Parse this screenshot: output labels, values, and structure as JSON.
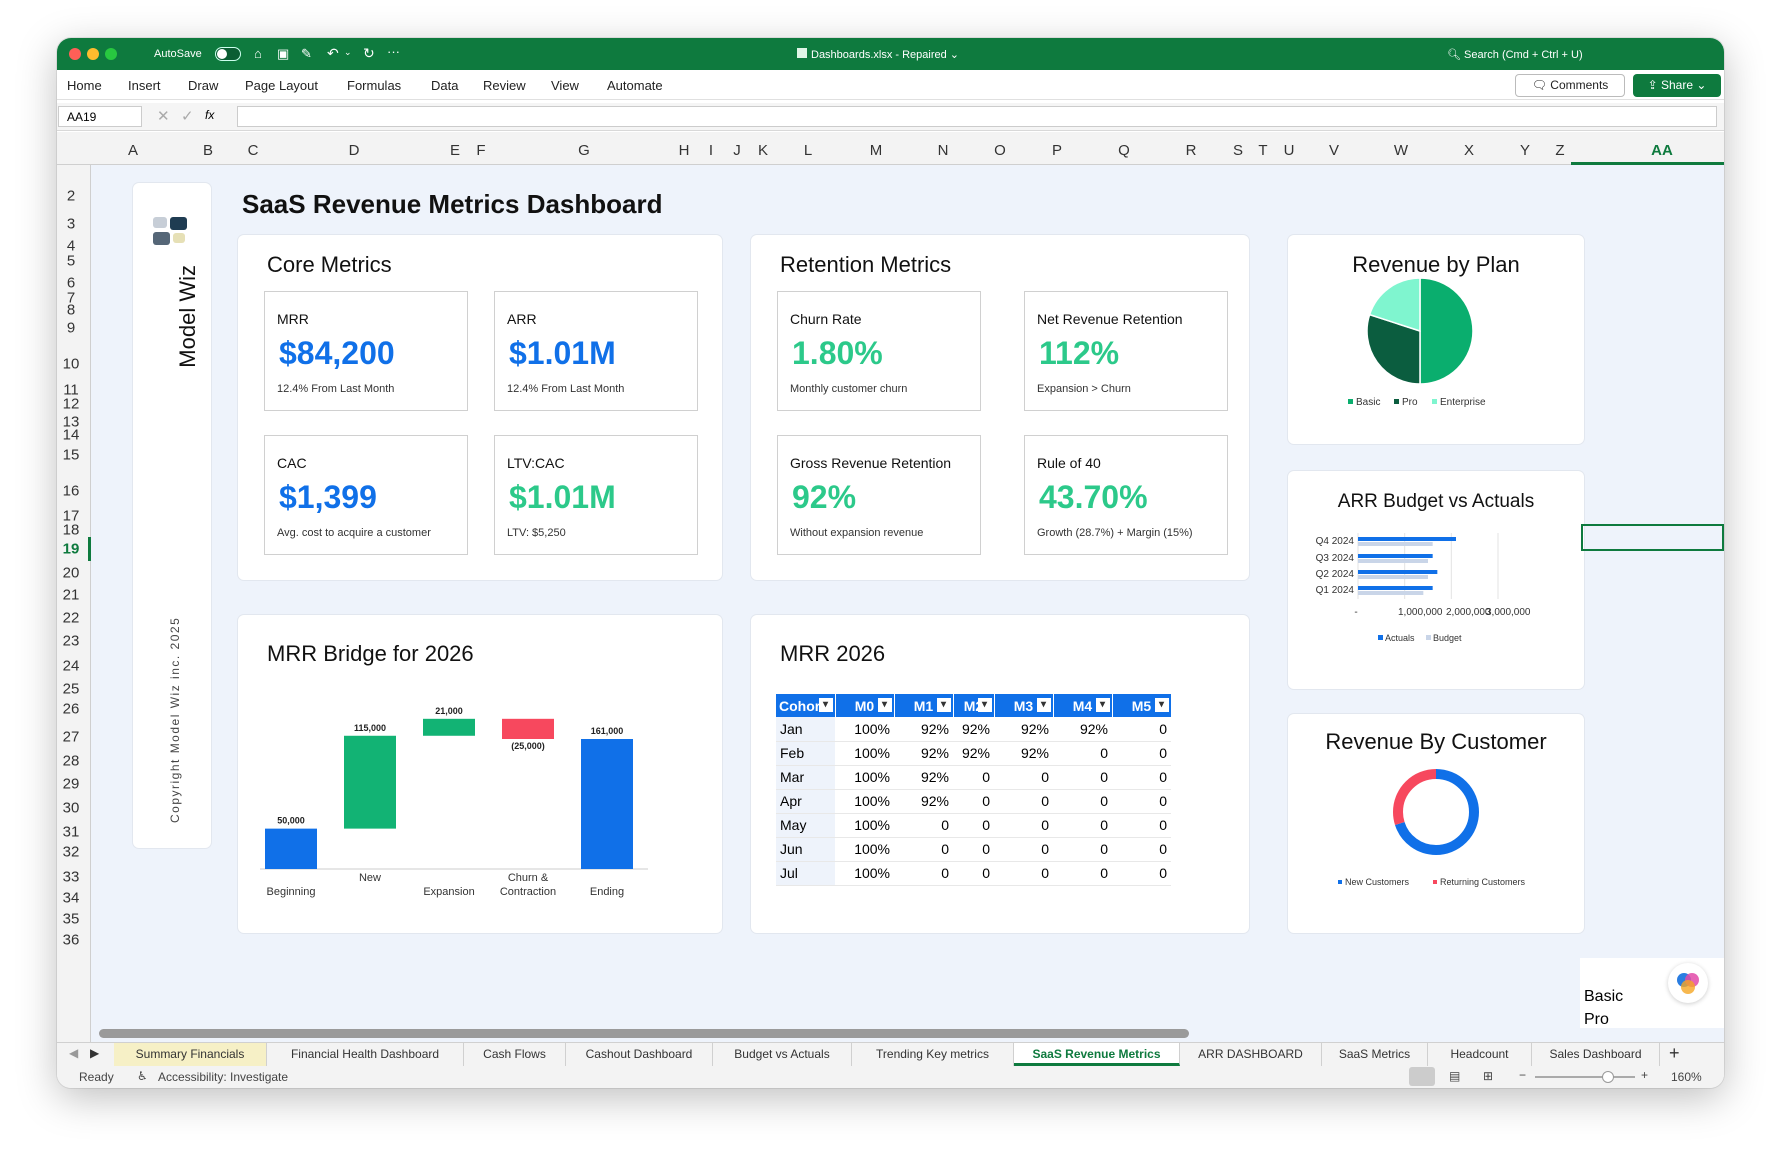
{
  "window": {
    "autosave": "AutoSave",
    "filename": "Dashboards.xlsx",
    "status": "Repaired",
    "search": "Search (Cmd + Ctrl + U)"
  },
  "menu": [
    "Home",
    "Insert",
    "Draw",
    "Page Layout",
    "Formulas",
    "Data",
    "Review",
    "View",
    "Automate"
  ],
  "comments": "Comments",
  "share": "Share",
  "formula": {
    "cell": "AA19",
    "fx": "fx"
  },
  "columns": [
    "A",
    "B",
    "C",
    "D",
    "E",
    "F",
    "G",
    "H",
    "I",
    "J",
    "K",
    "L",
    "M",
    "N",
    "O",
    "P",
    "Q",
    "R",
    "S",
    "T",
    "U",
    "V",
    "W",
    "X",
    "Y",
    "Z",
    "AA"
  ],
  "rows": [
    "2",
    "3",
    "4",
    "5",
    "6",
    "7",
    "8",
    "9",
    "10",
    "11",
    "12",
    "13",
    "14",
    "15",
    "16",
    "17",
    "18",
    "19",
    "20",
    "21",
    "22",
    "23",
    "24",
    "25",
    "26",
    "27",
    "28",
    "29",
    "30",
    "31",
    "32",
    "33",
    "34",
    "35",
    "36"
  ],
  "brand": {
    "name": "Model Wiz",
    "copyright": "Copyright Model Wiz inc. 2025"
  },
  "dashboard_title": "SaaS Revenue Metrics Dashboard",
  "core": {
    "title": "Core Metrics",
    "kpis": [
      {
        "label": "MRR",
        "value": "$84,200",
        "sub": "12.4% From Last Month",
        "color": "#1070e8"
      },
      {
        "label": "ARR",
        "value": "$1.01M",
        "sub": "12.4% From Last Month",
        "color": "#1070e8"
      },
      {
        "label": "CAC",
        "value": "$1,399",
        "sub": "Avg. cost to acquire a customer",
        "color": "#1070e8"
      },
      {
        "label": "LTV:CAC",
        "value": "$1.01M",
        "sub": "LTV: $5,250",
        "color": "#2cc98a"
      }
    ]
  },
  "retention": {
    "title": "Retention Metrics",
    "kpis": [
      {
        "label": "Churn Rate",
        "value": "1.80%",
        "sub": "Monthly customer churn",
        "color": "#2cc98a"
      },
      {
        "label": "Net Revenue Retention",
        "value": "112%",
        "sub": "Expansion > Churn",
        "color": "#2cc98a"
      },
      {
        "label": "Gross Revenue Retention",
        "value": "92%",
        "sub": "Without expansion revenue",
        "color": "#2cc98a"
      },
      {
        "label": "Rule of 40",
        "value": "43.70%",
        "sub": "Growth (28.7%) + Margin (15%)",
        "color": "#2cc98a"
      }
    ]
  },
  "chart_data": [
    {
      "type": "bar",
      "title": "MRR Bridge for 2026",
      "categories": [
        "Beginning",
        "New",
        "Expansion",
        "Churn & Contraction",
        "Ending"
      ],
      "values": [
        50000,
        115000,
        21000,
        -25000,
        161000
      ],
      "value_labels": [
        "50,000",
        "115,000",
        "21,000",
        "(25,000)",
        "161,000"
      ],
      "colors": [
        "#1070e8",
        "#12b374",
        "#12b374",
        "#f7485e",
        "#1070e8"
      ]
    },
    {
      "type": "pie",
      "title": "Revenue by Plan",
      "categories": [
        "Basic",
        "Pro",
        "Enterprise"
      ],
      "values": [
        50,
        30,
        20
      ],
      "colors": [
        "#0aae6e",
        "#0b5d3f",
        "#7ff5cf"
      ]
    },
    {
      "type": "bar",
      "title": "ARR Budget vs Actuals",
      "categories": [
        "Q4 2024",
        "Q3 2024",
        "Q2 2024",
        "Q1 2024"
      ],
      "series": [
        {
          "name": "Actuals",
          "values": [
            2100000,
            1600000,
            1700000,
            1600000
          ],
          "color": "#1070e8"
        },
        {
          "name": "Budget",
          "values": [
            1600000,
            1500000,
            1500000,
            1400000
          ],
          "color": "#c9d5e8"
        }
      ],
      "x_ticks": [
        "-",
        "1,000,000",
        "2,000,000",
        "3,000,000"
      ],
      "xlim": [
        0,
        3000000
      ]
    },
    {
      "type": "pie",
      "title": "Revenue By Customer",
      "categories": [
        "New Customers",
        "Returning Customers"
      ],
      "values": [
        70,
        30
      ],
      "colors": [
        "#1070e8",
        "#f7485e"
      ]
    }
  ],
  "cohort": {
    "title": "MRR 2026",
    "headers": [
      "Cohort",
      "M0",
      "M1",
      "M2",
      "M3",
      "M4",
      "M5"
    ],
    "rows": [
      [
        "Jan",
        "100%",
        "92%",
        "92%",
        "92%",
        "92%",
        "0"
      ],
      [
        "Feb",
        "100%",
        "92%",
        "92%",
        "92%",
        "0",
        "0"
      ],
      [
        "Mar",
        "100%",
        "92%",
        "0",
        "0",
        "0",
        "0"
      ],
      [
        "Apr",
        "100%",
        "92%",
        "0",
        "0",
        "0",
        "0"
      ],
      [
        "May",
        "100%",
        "0",
        "0",
        "0",
        "0",
        "0"
      ],
      [
        "Jun",
        "100%",
        "0",
        "0",
        "0",
        "0",
        "0"
      ],
      [
        "Jul",
        "100%",
        "0",
        "0",
        "0",
        "0",
        "0"
      ]
    ]
  },
  "overflow": [
    "Basic",
    "Pro"
  ],
  "tabs": [
    "Summary Financials",
    "Financial Health Dashboard",
    "Cash Flows",
    "Cashout Dashboard",
    "Budget vs Actuals",
    "Trending Key metrics",
    "SaaS Revenue Metrics",
    "ARR DASHBOARD",
    "SaaS Metrics",
    "Headcount",
    "Sales Dashboard"
  ],
  "status": {
    "ready": "Ready",
    "accessibility": "Accessibility: Investigate",
    "zoom": "160%"
  }
}
